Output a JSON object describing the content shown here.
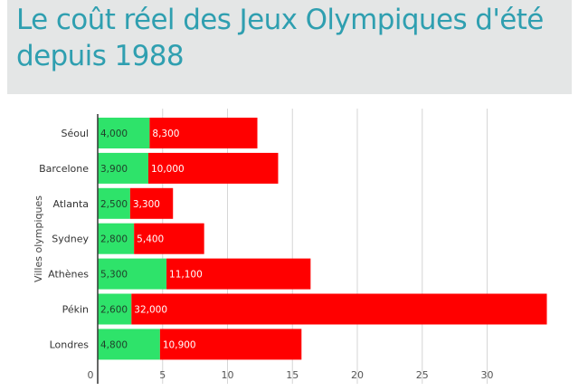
{
  "title": "Le coût réel des Jeux Olympiques d'été depuis 1988",
  "chart_data": {
    "type": "bar",
    "orientation": "horizontal",
    "stacked": true,
    "ylabel": "Villes olympiques",
    "xlim": [
      0,
      36
    ],
    "xticks": [
      0,
      5,
      10,
      15,
      20,
      25,
      30
    ],
    "grid": true,
    "categories": [
      "Séoul",
      "Barcelone",
      "Atlanta",
      "Sydney",
      "Athènes",
      "Pékin",
      "Londres"
    ],
    "series": [
      {
        "color": "#2ee36a",
        "values": [
          4.0,
          3.9,
          2.5,
          2.8,
          5.3,
          2.6,
          4.8
        ],
        "labels": [
          "4,000",
          "3,900",
          "2,500",
          "2,800",
          "5,300",
          "2,600",
          "4,800"
        ]
      },
      {
        "color": "#ff0000",
        "values": [
          8.3,
          10.0,
          3.3,
          5.4,
          11.1,
          32.0,
          10.9
        ],
        "labels": [
          "8,300",
          "10,000",
          "3,300",
          "5,400",
          "11,100",
          "32,000",
          "10,900"
        ]
      }
    ]
  }
}
